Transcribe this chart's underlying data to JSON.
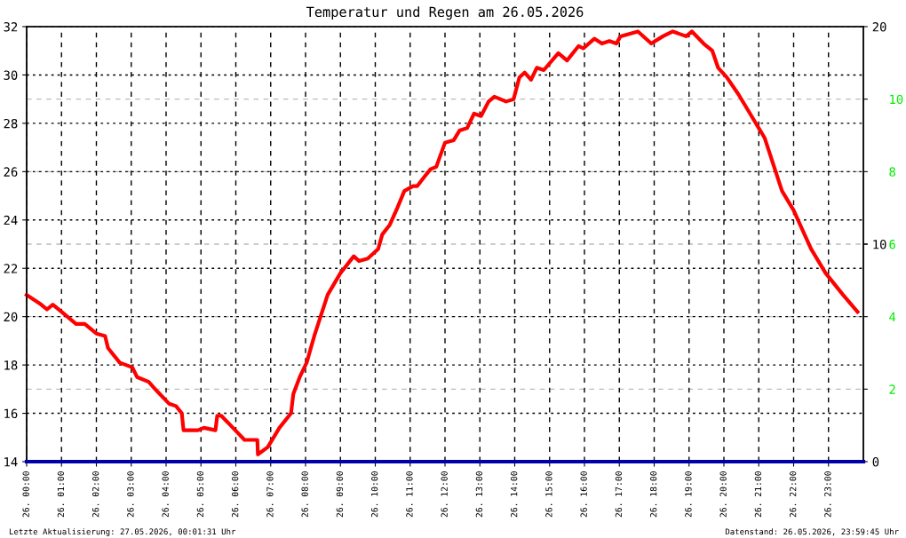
{
  "chart_data": {
    "type": "line",
    "title": "Temperatur und Regen am 26.05.2026",
    "x": [
      "2026-05-26T00:00",
      "2026-05-26T00:25",
      "2026-05-26T00:35",
      "2026-05-26T00:45",
      "2026-05-26T01:00",
      "2026-05-26T01:25",
      "2026-05-26T01:40",
      "2026-05-26T02:00",
      "2026-05-26T02:15",
      "2026-05-26T02:20",
      "2026-05-26T02:40",
      "2026-05-26T03:02",
      "2026-05-26T03:10",
      "2026-05-26T03:30",
      "2026-05-26T03:45",
      "2026-05-26T04:05",
      "2026-05-26T04:17",
      "2026-05-26T04:27",
      "2026-05-26T04:30",
      "2026-05-26T04:55",
      "2026-05-26T05:05",
      "2026-05-26T05:25",
      "2026-05-26T05:28",
      "2026-05-26T05:35",
      "2026-05-26T05:55",
      "2026-05-26T06:15",
      "2026-05-26T06:37",
      "2026-05-26T06:38",
      "2026-05-26T06:55",
      "2026-05-26T07:15",
      "2026-05-26T07:35",
      "2026-05-26T07:39",
      "2026-05-26T07:50",
      "2026-05-26T08:02",
      "2026-05-26T08:15",
      "2026-05-26T08:38",
      "2026-05-26T09:00",
      "2026-05-26T09:23",
      "2026-05-26T09:32",
      "2026-05-26T09:47",
      "2026-05-26T10:05",
      "2026-05-26T10:12",
      "2026-05-26T10:25",
      "2026-05-26T10:38",
      "2026-05-26T10:50",
      "2026-05-26T11:05",
      "2026-05-26T11:12",
      "2026-05-26T11:25",
      "2026-05-26T11:35",
      "2026-05-26T11:45",
      "2026-05-26T12:00",
      "2026-05-26T12:15",
      "2026-05-26T12:25",
      "2026-05-26T12:38",
      "2026-05-26T12:50",
      "2026-05-26T13:02",
      "2026-05-26T13:15",
      "2026-05-26T13:25",
      "2026-05-26T13:45",
      "2026-05-26T13:58",
      "2026-05-26T14:08",
      "2026-05-26T14:17",
      "2026-05-26T14:28",
      "2026-05-26T14:38",
      "2026-05-26T14:50",
      "2026-05-26T15:15",
      "2026-05-26T15:30",
      "2026-05-26T15:50",
      "2026-05-26T15:58",
      "2026-05-26T16:17",
      "2026-05-26T16:30",
      "2026-05-26T16:43",
      "2026-05-26T16:55",
      "2026-05-26T17:02",
      "2026-05-26T17:32",
      "2026-05-26T17:55",
      "2026-05-26T18:15",
      "2026-05-26T18:32",
      "2026-05-26T18:55",
      "2026-05-26T19:05",
      "2026-05-26T19:25",
      "2026-05-26T19:40",
      "2026-05-26T19:50",
      "2026-05-26T20:05",
      "2026-05-26T20:25",
      "2026-05-26T20:45",
      "2026-05-26T21:00",
      "2026-05-26T21:10",
      "2026-05-26T21:25",
      "2026-05-26T21:40",
      "2026-05-26T22:00",
      "2026-05-26T22:30",
      "2026-05-26T22:55",
      "2026-05-26T23:25",
      "2026-05-26T23:50"
    ],
    "series": [
      {
        "color": "#ff0000",
        "values": [
          20.9,
          20.5,
          20.3,
          20.5,
          20.2,
          19.7,
          19.7,
          19.3,
          19.2,
          18.7,
          18.1,
          17.9,
          17.5,
          17.3,
          16.9,
          16.4,
          16.3,
          16.0,
          15.3,
          15.3,
          15.4,
          15.3,
          15.9,
          15.9,
          15.4,
          14.9,
          14.9,
          14.3,
          14.6,
          15.4,
          16.0,
          16.8,
          17.5,
          18.1,
          19.2,
          20.9,
          21.8,
          22.5,
          22.3,
          22.4,
          22.8,
          23.4,
          23.8,
          24.5,
          25.2,
          25.4,
          25.4,
          25.8,
          26.1,
          26.2,
          27.2,
          27.3,
          27.7,
          27.8,
          28.4,
          28.3,
          28.9,
          29.1,
          28.9,
          29.0,
          29.9,
          30.1,
          29.8,
          30.3,
          30.2,
          30.9,
          30.6,
          31.2,
          31.1,
          31.5,
          31.3,
          31.4,
          31.3,
          31.6,
          31.8,
          31.3,
          31.6,
          31.8,
          31.6,
          31.8,
          31.3,
          31.0,
          30.3,
          29.9,
          29.2,
          28.4,
          27.8,
          27.4,
          26.3,
          25.2,
          24.4,
          22.8,
          21.8,
          20.9,
          20.2
        ]
      },
      {
        "color": "#0000aa",
        "axis": "y2",
        "x": [
          "2026-05-26T00:00",
          "2026-05-27T00:00"
        ],
        "values": [
          0,
          0
        ]
      }
    ],
    "xlim": [
      "2026-05-26T00:00",
      "2026-05-27T00:00"
    ],
    "xticks": [
      {
        "value": "2026-05-26T00:00",
        "label": "26. 00:00"
      },
      {
        "value": "2026-05-26T01:00",
        "label": "26. 01:00"
      },
      {
        "value": "2026-05-26T02:00",
        "label": "26. 02:00"
      },
      {
        "value": "2026-05-26T03:00",
        "label": "26. 03:00"
      },
      {
        "value": "2026-05-26T04:00",
        "label": "26. 04:00"
      },
      {
        "value": "2026-05-26T05:00",
        "label": "26. 05:00"
      },
      {
        "value": "2026-05-26T06:00",
        "label": "26. 06:00"
      },
      {
        "value": "2026-05-26T07:00",
        "label": "26. 07:00"
      },
      {
        "value": "2026-05-26T08:00",
        "label": "26. 08:00"
      },
      {
        "value": "2026-05-26T09:00",
        "label": "26. 09:00"
      },
      {
        "value": "2026-05-26T10:00",
        "label": "26. 10:00"
      },
      {
        "value": "2026-05-26T11:00",
        "label": "26. 11:00"
      },
      {
        "value": "2026-05-26T12:00",
        "label": "26. 12:00"
      },
      {
        "value": "2026-05-26T13:00",
        "label": "26. 13:00"
      },
      {
        "value": "2026-05-26T14:00",
        "label": "26. 14:00"
      },
      {
        "value": "2026-05-26T15:00",
        "label": "26. 15:00"
      },
      {
        "value": "2026-05-26T16:00",
        "label": "26. 16:00"
      },
      {
        "value": "2026-05-26T17:00",
        "label": "26. 17:00"
      },
      {
        "value": "2026-05-26T18:00",
        "label": "26. 18:00"
      },
      {
        "value": "2026-05-26T19:00",
        "label": "26. 19:00"
      },
      {
        "value": "2026-05-26T20:00",
        "label": "26. 20:00"
      },
      {
        "value": "2026-05-26T21:00",
        "label": "26. 21:00"
      },
      {
        "value": "2026-05-26T22:00",
        "label": "26. 22:00"
      },
      {
        "value": "2026-05-26T23:00",
        "label": "26. 23:00"
      }
    ],
    "ylim": [
      14,
      32
    ],
    "yticks": [
      14,
      16,
      18,
      20,
      22,
      24,
      26,
      28,
      30,
      32
    ],
    "y2lim": [
      0,
      20
    ],
    "y2ticks": [
      0,
      10,
      20
    ],
    "y3lim": [
      0,
      12
    ],
    "y3ticks": [
      2,
      4,
      6,
      8,
      10
    ],
    "grid": true,
    "marker": "none",
    "line_style": "solid",
    "annotations": [
      "Letzte Aktualisierung: 27.05.2026, 00:01:31 Uhr",
      "Datenstand: 26.05.2026, 23:59:45 Uhr"
    ]
  }
}
